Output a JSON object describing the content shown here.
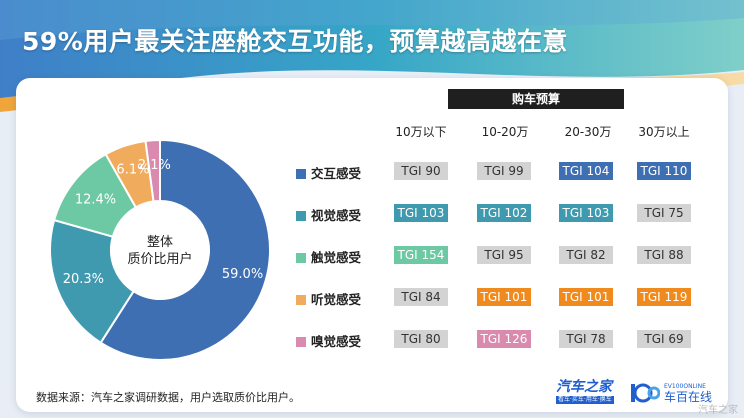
{
  "title": "59%用户最关注座舱交互功能，预算越高越在意",
  "chart_data": [
    {
      "type": "pie",
      "center_label": "整体\n质价比用户",
      "slices": [
        {
          "label": "交互感受",
          "value": 59.0,
          "text": "59.0%",
          "color": "#3f6fb3"
        },
        {
          "label": "视觉感受",
          "value": 20.3,
          "text": "20.3%",
          "color": "#3f9ab0"
        },
        {
          "label": "触觉感受",
          "value": 12.4,
          "text": "12.4%",
          "color": "#6cc9a3"
        },
        {
          "label": "听觉感受",
          "value": 6.1,
          "text": "6.1%",
          "color": "#f0ab5c"
        },
        {
          "label": "嗅觉感受",
          "value": 2.1,
          "text": "2.1%",
          "color": "#d98aae"
        }
      ]
    },
    {
      "type": "table",
      "header": "购车预算",
      "columns": [
        "10万以下",
        "10-20万",
        "20-30万",
        "30万以上"
      ],
      "rows": [
        {
          "label": "交互感受",
          "color": "#3f6fb3",
          "cells": [
            {
              "text": "TGI 90",
              "style": "grey"
            },
            {
              "text": "TGI 99",
              "style": "grey"
            },
            {
              "text": "TGI 104",
              "style": "blue"
            },
            {
              "text": "TGI 110",
              "style": "blue"
            }
          ]
        },
        {
          "label": "视觉感受",
          "color": "#3f9ab0",
          "cells": [
            {
              "text": "TGI 103",
              "style": "teal"
            },
            {
              "text": "TGI 102",
              "style": "teal"
            },
            {
              "text": "TGI 103",
              "style": "teal"
            },
            {
              "text": "TGI 75",
              "style": "grey"
            }
          ]
        },
        {
          "label": "触觉感受",
          "color": "#6cc9a3",
          "cells": [
            {
              "text": "TGI 154",
              "style": "green"
            },
            {
              "text": "TGI 95",
              "style": "grey"
            },
            {
              "text": "TGI 82",
              "style": "grey"
            },
            {
              "text": "TGI 88",
              "style": "grey"
            }
          ]
        },
        {
          "label": "听觉感受",
          "color": "#f0ab5c",
          "cells": [
            {
              "text": "TGI 84",
              "style": "grey"
            },
            {
              "text": "TGI 101",
              "style": "orange"
            },
            {
              "text": "TGI 101",
              "style": "orange"
            },
            {
              "text": "TGI 119",
              "style": "orange"
            }
          ]
        },
        {
          "label": "嗅觉感受",
          "color": "#d98aae",
          "cells": [
            {
              "text": "TGI 80",
              "style": "grey"
            },
            {
              "text": "TGI 126",
              "style": "pink"
            },
            {
              "text": "TGI 78",
              "style": "grey"
            },
            {
              "text": "TGI 69",
              "style": "grey"
            }
          ]
        }
      ]
    }
  ],
  "footer": {
    "source": "数据来源：汽车之家调研数据，用户选取质价比用户。",
    "logo1_text": "汽车之家",
    "logo1_slogan": "看车·买车·用车·换车",
    "logo2_en": "EV100ONLINE",
    "logo2_cn": "车百在线",
    "watermark": "汽车之家"
  }
}
